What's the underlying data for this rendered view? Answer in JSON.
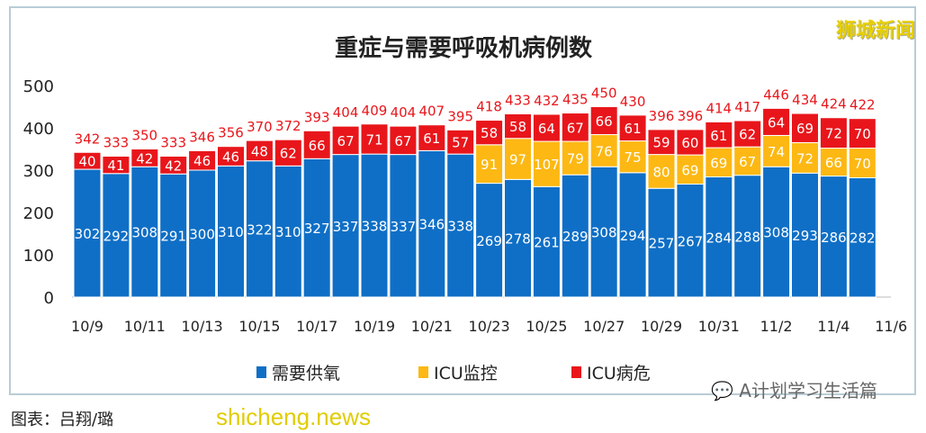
{
  "chart_data": {
    "type": "bar",
    "stacked": true,
    "title": "重症与需要呼吸机病例数",
    "categories": [
      "10/9",
      "10/10",
      "10/11",
      "10/12",
      "10/13",
      "10/14",
      "10/15",
      "10/16",
      "10/17",
      "10/18",
      "10/19",
      "10/20",
      "10/21",
      "10/22",
      "10/23",
      "10/24",
      "10/25",
      "10/26",
      "10/27",
      "10/28",
      "10/29",
      "10/30",
      "10/31",
      "11/1",
      "11/2",
      "11/3",
      "11/4",
      "11/5"
    ],
    "x_tick_labels": [
      "10/9",
      "10/11",
      "10/13",
      "10/15",
      "10/17",
      "10/19",
      "10/21",
      "10/23",
      "10/25",
      "10/27",
      "10/29",
      "10/31",
      "11/2",
      "11/4",
      "11/6"
    ],
    "y_ticks": [
      0,
      100,
      200,
      300,
      400,
      500
    ],
    "ylim": [
      0,
      500
    ],
    "grid": false,
    "legend": "bottom",
    "series": [
      {
        "name": "需要供氧",
        "color": "#0f6fc6",
        "values": [
          302,
          292,
          308,
          291,
          300,
          310,
          322,
          310,
          327,
          337,
          338,
          337,
          346,
          338,
          269,
          278,
          261,
          289,
          308,
          294,
          257,
          267,
          284,
          288,
          308,
          293,
          286,
          282
        ]
      },
      {
        "name": "ICU监控",
        "color": "#fdb813",
        "values": [
          0,
          0,
          0,
          0,
          0,
          0,
          0,
          0,
          0,
          0,
          0,
          0,
          0,
          0,
          91,
          97,
          107,
          79,
          76,
          75,
          80,
          69,
          69,
          67,
          74,
          72,
          66,
          70
        ]
      },
      {
        "name": "ICU病危",
        "color": "#e8161b",
        "values": [
          40,
          41,
          42,
          42,
          46,
          46,
          48,
          62,
          66,
          67,
          71,
          67,
          61,
          57,
          58,
          58,
          64,
          67,
          66,
          61,
          59,
          60,
          61,
          62,
          64,
          69,
          72,
          70
        ]
      }
    ],
    "totals": [
      342,
      333,
      350,
      333,
      346,
      356,
      370,
      372,
      393,
      404,
      409,
      404,
      407,
      395,
      418,
      433,
      432,
      435,
      450,
      430,
      396,
      396,
      414,
      417,
      446,
      434,
      424,
      422
    ]
  },
  "caption": "图表：吕翔/璐",
  "watermark": "shicheng.news",
  "logo": "狮城新闻",
  "wechat": "A计划学习生活篇"
}
